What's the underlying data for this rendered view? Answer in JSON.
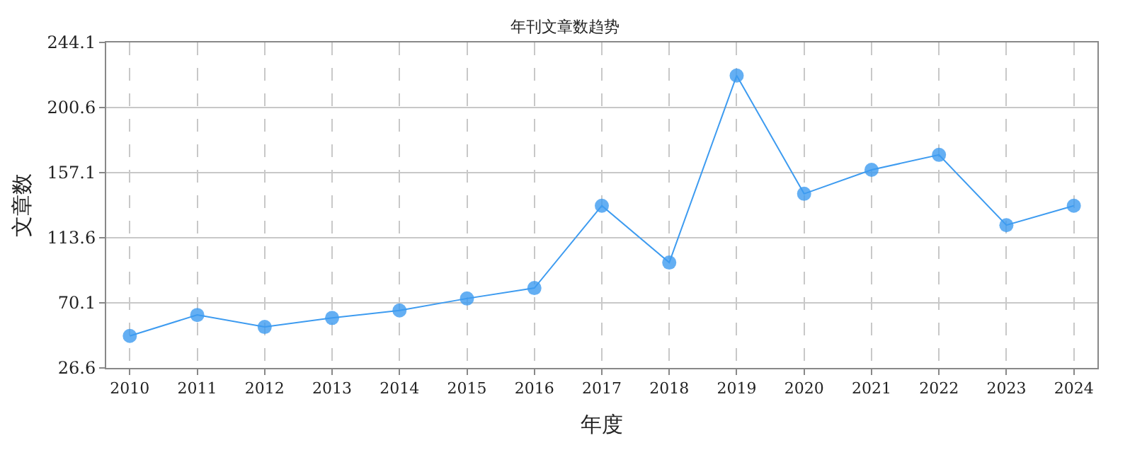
{
  "chart_data": {
    "type": "line",
    "title": "年刊文章数趋势",
    "xlabel": "年度",
    "ylabel": "文章数",
    "categories": [
      "2010",
      "2011",
      "2012",
      "2013",
      "2014",
      "2015",
      "2016",
      "2017",
      "2018",
      "2019",
      "2020",
      "2021",
      "2022",
      "2023",
      "2024"
    ],
    "series": [
      {
        "color": "#3d9bf0",
        "values": [
          48,
          62,
          54,
          60,
          65,
          73,
          80,
          135,
          97,
          222,
          143,
          159,
          169,
          122,
          135
        ]
      }
    ],
    "ylim": [
      26.6,
      244.1
    ],
    "yticks": [
      26.6,
      70.1,
      113.6,
      157.1,
      200.6,
      244.1
    ],
    "grid": true,
    "marker": "circle",
    "line_style": "solid"
  }
}
